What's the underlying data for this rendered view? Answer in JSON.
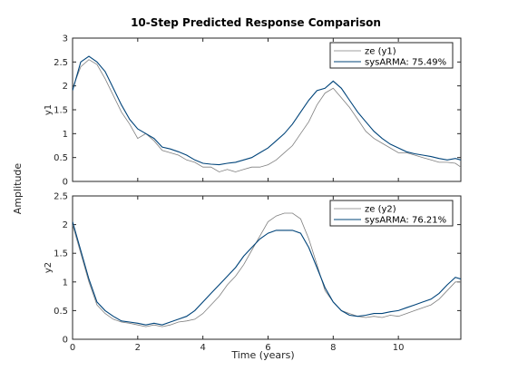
{
  "chart_data": {
    "type": "line",
    "title": "10-Step Predicted Response Comparison",
    "xlabel": "Time (years)",
    "ylabel": "Amplitude",
    "xlim": [
      0,
      11.917
    ],
    "xticks": [
      0,
      2,
      4,
      6,
      8,
      10
    ],
    "grid": false,
    "colors": {
      "measured": "#7f7f7f",
      "model": "#00447a"
    },
    "subplots": [
      {
        "ylabel": "y1",
        "ylim": [
          0,
          3
        ],
        "yticks": [
          0,
          0.5,
          1,
          1.5,
          2,
          2.5,
          3
        ],
        "legend_position": "top-right",
        "series": [
          {
            "name": "ze (y1)",
            "role": "measured",
            "x": [
              0,
              0.25,
              0.5,
              0.75,
              1,
              1.25,
              1.5,
              1.75,
              2,
              2.25,
              2.5,
              2.75,
              3,
              3.25,
              3.5,
              3.75,
              4,
              4.25,
              4.5,
              4.75,
              5,
              5.25,
              5.5,
              5.75,
              6,
              6.25,
              6.5,
              6.75,
              7,
              7.25,
              7.5,
              7.75,
              8,
              8.25,
              8.5,
              8.75,
              9,
              9.25,
              9.5,
              9.75,
              10,
              10.25,
              10.5,
              10.75,
              11,
              11.25,
              11.5,
              11.75,
              11.917
            ],
            "y": [
              1.95,
              2.4,
              2.55,
              2.45,
              2.15,
              1.8,
              1.45,
              1.2,
              0.9,
              1.0,
              0.85,
              0.65,
              0.6,
              0.55,
              0.45,
              0.4,
              0.3,
              0.3,
              0.2,
              0.25,
              0.2,
              0.25,
              0.3,
              0.3,
              0.35,
              0.45,
              0.6,
              0.75,
              1.0,
              1.25,
              1.6,
              1.85,
              1.95,
              1.75,
              1.55,
              1.3,
              1.05,
              0.9,
              0.8,
              0.7,
              0.6,
              0.6,
              0.55,
              0.5,
              0.45,
              0.4,
              0.4,
              0.38,
              0.3
            ]
          },
          {
            "name": "sysARMA: 75.49%",
            "role": "model",
            "x": [
              0,
              0.25,
              0.5,
              0.75,
              1,
              1.25,
              1.5,
              1.75,
              2,
              2.25,
              2.5,
              2.75,
              3,
              3.25,
              3.5,
              3.75,
              4,
              4.25,
              4.5,
              4.75,
              5,
              5.25,
              5.5,
              5.75,
              6,
              6.25,
              6.5,
              6.75,
              7,
              7.25,
              7.5,
              7.75,
              8,
              8.25,
              8.5,
              8.75,
              9,
              9.25,
              9.5,
              9.75,
              10,
              10.25,
              10.5,
              10.75,
              11,
              11.25,
              11.5,
              11.75,
              11.917
            ],
            "y": [
              1.9,
              2.5,
              2.62,
              2.5,
              2.3,
              1.95,
              1.6,
              1.3,
              1.1,
              1.0,
              0.9,
              0.72,
              0.68,
              0.62,
              0.55,
              0.45,
              0.38,
              0.36,
              0.35,
              0.38,
              0.4,
              0.45,
              0.5,
              0.6,
              0.7,
              0.85,
              1.0,
              1.2,
              1.45,
              1.7,
              1.9,
              1.95,
              2.1,
              1.95,
              1.7,
              1.45,
              1.25,
              1.05,
              0.9,
              0.78,
              0.7,
              0.62,
              0.58,
              0.55,
              0.52,
              0.48,
              0.45,
              0.48,
              0.45
            ]
          }
        ]
      },
      {
        "ylabel": "y2",
        "ylim": [
          0,
          2.5
        ],
        "yticks": [
          0,
          0.5,
          1,
          1.5,
          2,
          2.5
        ],
        "legend_position": "top-right",
        "series": [
          {
            "name": "ze (y2)",
            "role": "measured",
            "x": [
              0,
              0.25,
              0.5,
              0.75,
              1,
              1.25,
              1.5,
              1.75,
              2,
              2.25,
              2.5,
              2.75,
              3,
              3.25,
              3.5,
              3.75,
              4,
              4.25,
              4.5,
              4.75,
              5,
              5.25,
              5.5,
              5.75,
              6,
              6.25,
              6.5,
              6.75,
              7,
              7.25,
              7.5,
              7.75,
              8,
              8.25,
              8.5,
              8.75,
              9,
              9.25,
              9.5,
              9.75,
              10,
              10.25,
              10.5,
              10.75,
              11,
              11.25,
              11.5,
              11.75,
              11.917
            ],
            "y": [
              2.0,
              1.5,
              1.0,
              0.6,
              0.45,
              0.35,
              0.3,
              0.28,
              0.25,
              0.22,
              0.25,
              0.22,
              0.25,
              0.3,
              0.32,
              0.35,
              0.45,
              0.6,
              0.75,
              0.95,
              1.1,
              1.3,
              1.55,
              1.8,
              2.05,
              2.15,
              2.2,
              2.2,
              2.1,
              1.75,
              1.3,
              0.85,
              0.65,
              0.5,
              0.45,
              0.4,
              0.38,
              0.4,
              0.38,
              0.42,
              0.4,
              0.45,
              0.5,
              0.55,
              0.6,
              0.7,
              0.85,
              1.0,
              1.0
            ]
          },
          {
            "name": "sysARMA: 76.21%",
            "role": "model",
            "x": [
              0,
              0.25,
              0.5,
              0.75,
              1,
              1.25,
              1.5,
              1.75,
              2,
              2.25,
              2.5,
              2.75,
              3,
              3.25,
              3.5,
              3.75,
              4,
              4.25,
              4.5,
              4.75,
              5,
              5.25,
              5.5,
              5.75,
              6,
              6.25,
              6.5,
              6.75,
              7,
              7.25,
              7.5,
              7.75,
              8,
              8.25,
              8.5,
              8.75,
              9,
              9.25,
              9.5,
              9.75,
              10,
              10.25,
              10.5,
              10.75,
              11,
              11.25,
              11.5,
              11.75,
              11.917
            ],
            "y": [
              2.05,
              1.55,
              1.05,
              0.65,
              0.5,
              0.4,
              0.32,
              0.3,
              0.28,
              0.25,
              0.28,
              0.25,
              0.3,
              0.35,
              0.4,
              0.5,
              0.65,
              0.8,
              0.95,
              1.1,
              1.25,
              1.45,
              1.6,
              1.75,
              1.85,
              1.9,
              1.9,
              1.9,
              1.85,
              1.6,
              1.25,
              0.9,
              0.65,
              0.5,
              0.42,
              0.4,
              0.42,
              0.45,
              0.45,
              0.48,
              0.5,
              0.55,
              0.6,
              0.65,
              0.7,
              0.8,
              0.95,
              1.08,
              1.05
            ]
          }
        ]
      }
    ]
  }
}
